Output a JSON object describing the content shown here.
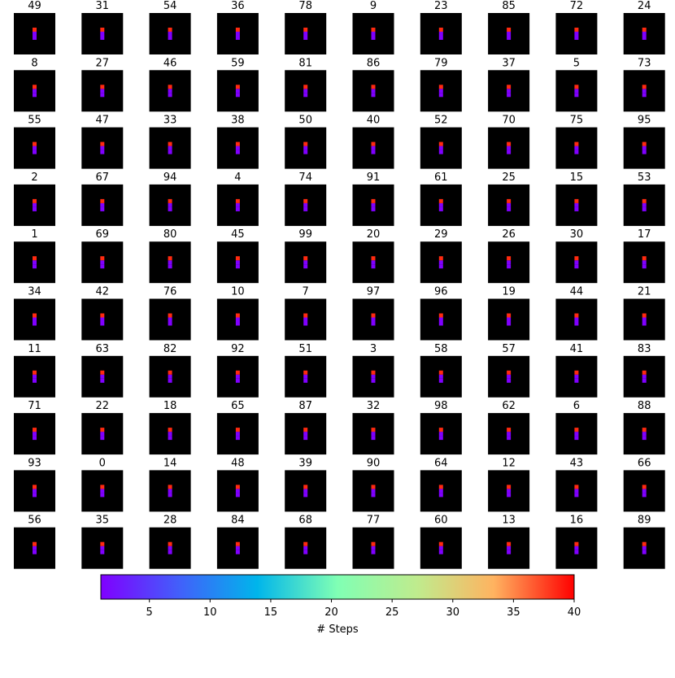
{
  "titles": [
    49,
    31,
    54,
    36,
    78,
    9,
    23,
    85,
    72,
    24,
    8,
    27,
    46,
    59,
    81,
    86,
    79,
    37,
    5,
    73,
    55,
    47,
    33,
    38,
    50,
    40,
    52,
    70,
    75,
    95,
    2,
    67,
    94,
    4,
    74,
    91,
    61,
    25,
    15,
    53,
    1,
    69,
    80,
    45,
    99,
    20,
    29,
    26,
    30,
    17,
    34,
    42,
    76,
    10,
    7,
    97,
    96,
    19,
    44,
    21,
    11,
    63,
    82,
    92,
    51,
    3,
    58,
    57,
    41,
    83,
    71,
    22,
    18,
    65,
    87,
    32,
    98,
    62,
    6,
    88,
    93,
    0,
    14,
    48,
    39,
    90,
    64,
    12,
    43,
    66,
    56,
    35,
    28,
    84,
    68,
    77,
    60,
    13,
    16,
    89
  ],
  "colorbar": {
    "label": "# Steps",
    "lim": [
      1,
      40
    ],
    "ticks": [
      5,
      10,
      15,
      20,
      25,
      30,
      35,
      40
    ]
  }
}
